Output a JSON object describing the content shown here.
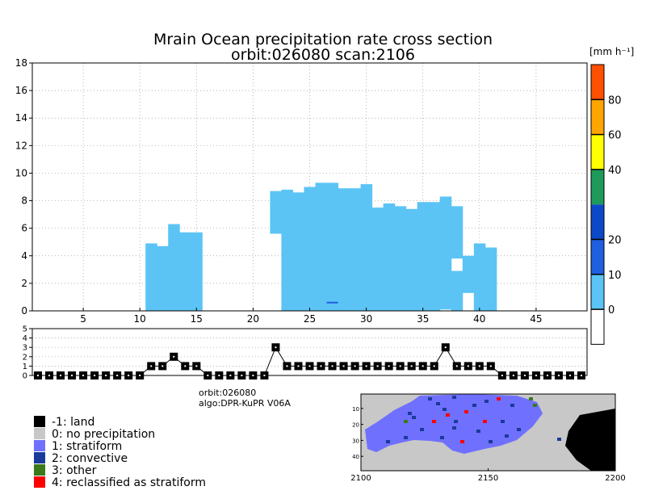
{
  "title": {
    "line1": "Mrain Ocean precipitation rate cross section",
    "line2": "orbit:026080    scan:2106"
  },
  "colorbar": {
    "unit": "[mm h⁻¹]",
    "labels": [
      "0",
      "10",
      "20",
      "40",
      "60",
      "80"
    ],
    "colors": [
      "#ffffff",
      "#5bc4f5",
      "#1f5fe0",
      "#0b49c8",
      "#1e9a5b",
      "#ffff00",
      "#ffa500",
      "#ff5000"
    ]
  },
  "info": {
    "orbit": "orbit:026080",
    "algo": "algo:DPR-KuPR V06A"
  },
  "legend": [
    {
      "label": "-1: land",
      "color": "#000000"
    },
    {
      "label": "0: no precipitation",
      "color": "#c8c8c8"
    },
    {
      "label": "1: stratiform",
      "color": "#7070ff"
    },
    {
      "label": "2: convective",
      "color": "#1a3a9a"
    },
    {
      "label": "3: other",
      "color": "#3a7a1a"
    },
    {
      "label": "4: reclassified as stratiform",
      "color": "#ff0000"
    }
  ],
  "chart_data": [
    {
      "type": "heatmap",
      "name": "precipitation cross section",
      "xlim": [
        1,
        49
      ],
      "ylim": [
        0,
        18
      ],
      "xticks": [
        5,
        10,
        15,
        20,
        25,
        30,
        35,
        40,
        45
      ],
      "yticks": [
        0,
        2,
        4,
        6,
        8,
        10,
        12,
        14,
        16,
        18
      ],
      "columns": [
        {
          "x": 11,
          "top": 4.9
        },
        {
          "x": 12,
          "top": 4.7
        },
        {
          "x": 13,
          "top": 6.3
        },
        {
          "x": 14,
          "top": 5.7
        },
        {
          "x": 15,
          "top": 5.7
        },
        {
          "x": 22,
          "top": 8.7,
          "bottom": 5.6
        },
        {
          "x": 23,
          "top": 8.8
        },
        {
          "x": 24,
          "top": 8.6
        },
        {
          "x": 25,
          "top": 9.0
        },
        {
          "x": 26,
          "top": 9.3
        },
        {
          "x": 27,
          "top": 9.3
        },
        {
          "x": 28,
          "top": 8.9
        },
        {
          "x": 29,
          "top": 8.9
        },
        {
          "x": 30,
          "top": 9.2
        },
        {
          "x": 31,
          "top": 7.5
        },
        {
          "x": 32,
          "top": 7.8
        },
        {
          "x": 33,
          "top": 7.6
        },
        {
          "x": 34,
          "top": 7.4
        },
        {
          "x": 35,
          "top": 7.9
        },
        {
          "x": 36,
          "top": 7.9
        },
        {
          "x": 37,
          "top": 8.3,
          "bottom": 0.1
        },
        {
          "x": 38,
          "top": 7.6,
          "bottom": 3.8,
          "lower_top": 2.9
        },
        {
          "x": 39,
          "top": 4.0,
          "bottom": 1.3
        },
        {
          "x": 40,
          "top": 4.9
        },
        {
          "x": 41,
          "top": 4.6
        }
      ],
      "convective_marks": [
        {
          "x": 27,
          "y": 0.6
        }
      ]
    },
    {
      "type": "line",
      "name": "rain type along scan",
      "xlim": [
        1,
        49
      ],
      "ylim": [
        0,
        5
      ],
      "yticks": [
        0,
        1,
        2,
        3,
        4,
        5
      ],
      "x": [
        1,
        2,
        3,
        4,
        5,
        6,
        7,
        8,
        9,
        10,
        11,
        12,
        13,
        14,
        15,
        16,
        17,
        18,
        19,
        20,
        21,
        22,
        23,
        24,
        25,
        26,
        27,
        28,
        29,
        30,
        31,
        32,
        33,
        34,
        35,
        36,
        37,
        38,
        39,
        40,
        41,
        42,
        43,
        44,
        45,
        46,
        47,
        48,
        49
      ],
      "values": [
        0,
        0,
        0,
        0,
        0,
        0,
        0,
        0,
        0,
        0,
        1,
        1,
        2,
        1,
        1,
        0,
        0,
        0,
        0,
        0,
        0,
        3,
        1,
        1,
        1,
        1,
        1,
        1,
        1,
        1,
        1,
        1,
        1,
        1,
        1,
        1,
        3,
        1,
        1,
        1,
        1,
        0,
        0,
        0,
        0,
        0,
        0,
        0,
        0
      ]
    },
    {
      "type": "heatmap",
      "name": "rain type map",
      "xticks": [
        2100,
        2150,
        2200
      ],
      "yticks": [
        10,
        20,
        30,
        40
      ],
      "xlim": [
        2100,
        2200
      ],
      "ylim": [
        1,
        49
      ]
    }
  ]
}
